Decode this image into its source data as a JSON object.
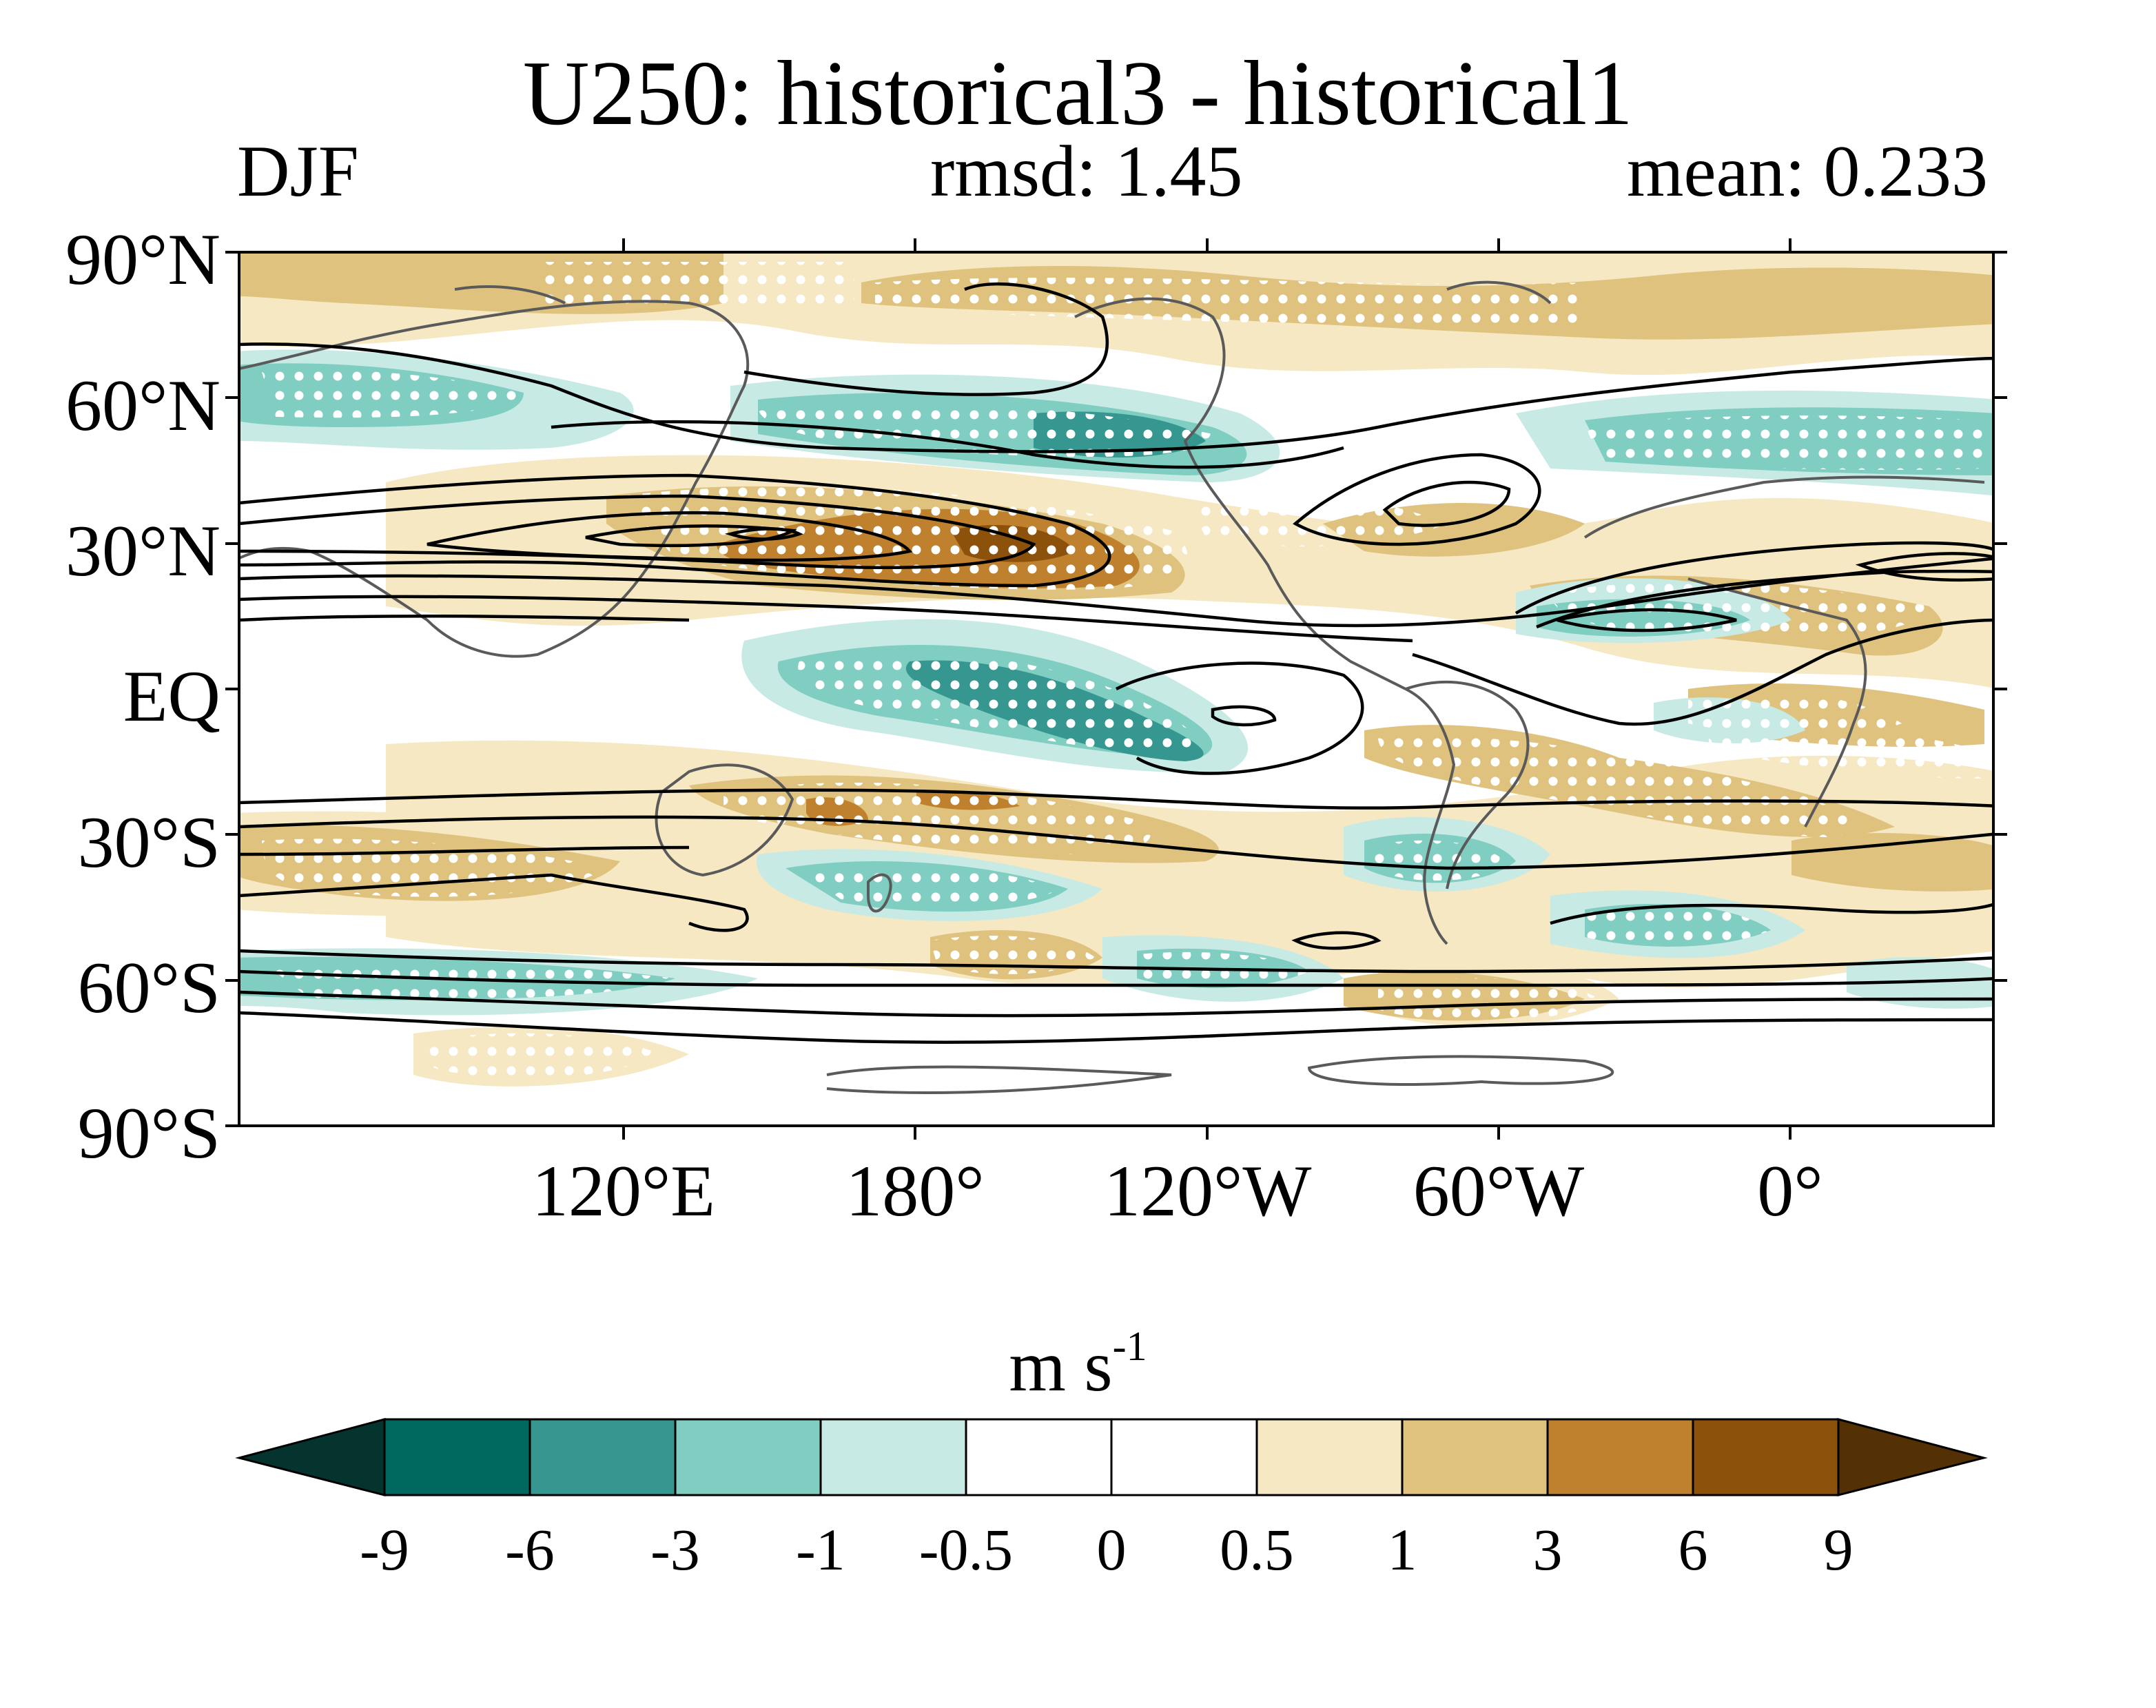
{
  "title": "U250: historical3 - historical1",
  "season": "DJF",
  "rmsd_label": "rmsd: 1.45",
  "mean_label": "mean: 0.233",
  "map": {
    "lat_labels": [
      "90°N",
      "60°N",
      "30°N",
      "EQ",
      "30°S",
      "60°S",
      "90°S"
    ],
    "lon_labels": [
      "120°E",
      "180°",
      "120°W",
      "60°W",
      "0°"
    ],
    "colors": {
      "land_outline": "#5a5a5a",
      "contour": "#000000",
      "stipple": "#ffffff"
    }
  },
  "colorbar": {
    "units_main": "m s",
    "units_exp": "-1",
    "levels": [
      "-9",
      "-6",
      "-3",
      "-1",
      "-0.5",
      "0",
      "0.5",
      "1",
      "3",
      "6",
      "9"
    ],
    "colors": [
      "#05342f",
      "#00695f",
      "#35978f",
      "#80cdc1",
      "#c7eae5",
      "#ffffff",
      "#ffffff",
      "#f6e8c3",
      "#dfc27d",
      "#bf812d",
      "#8c510a",
      "#543005"
    ]
  }
}
